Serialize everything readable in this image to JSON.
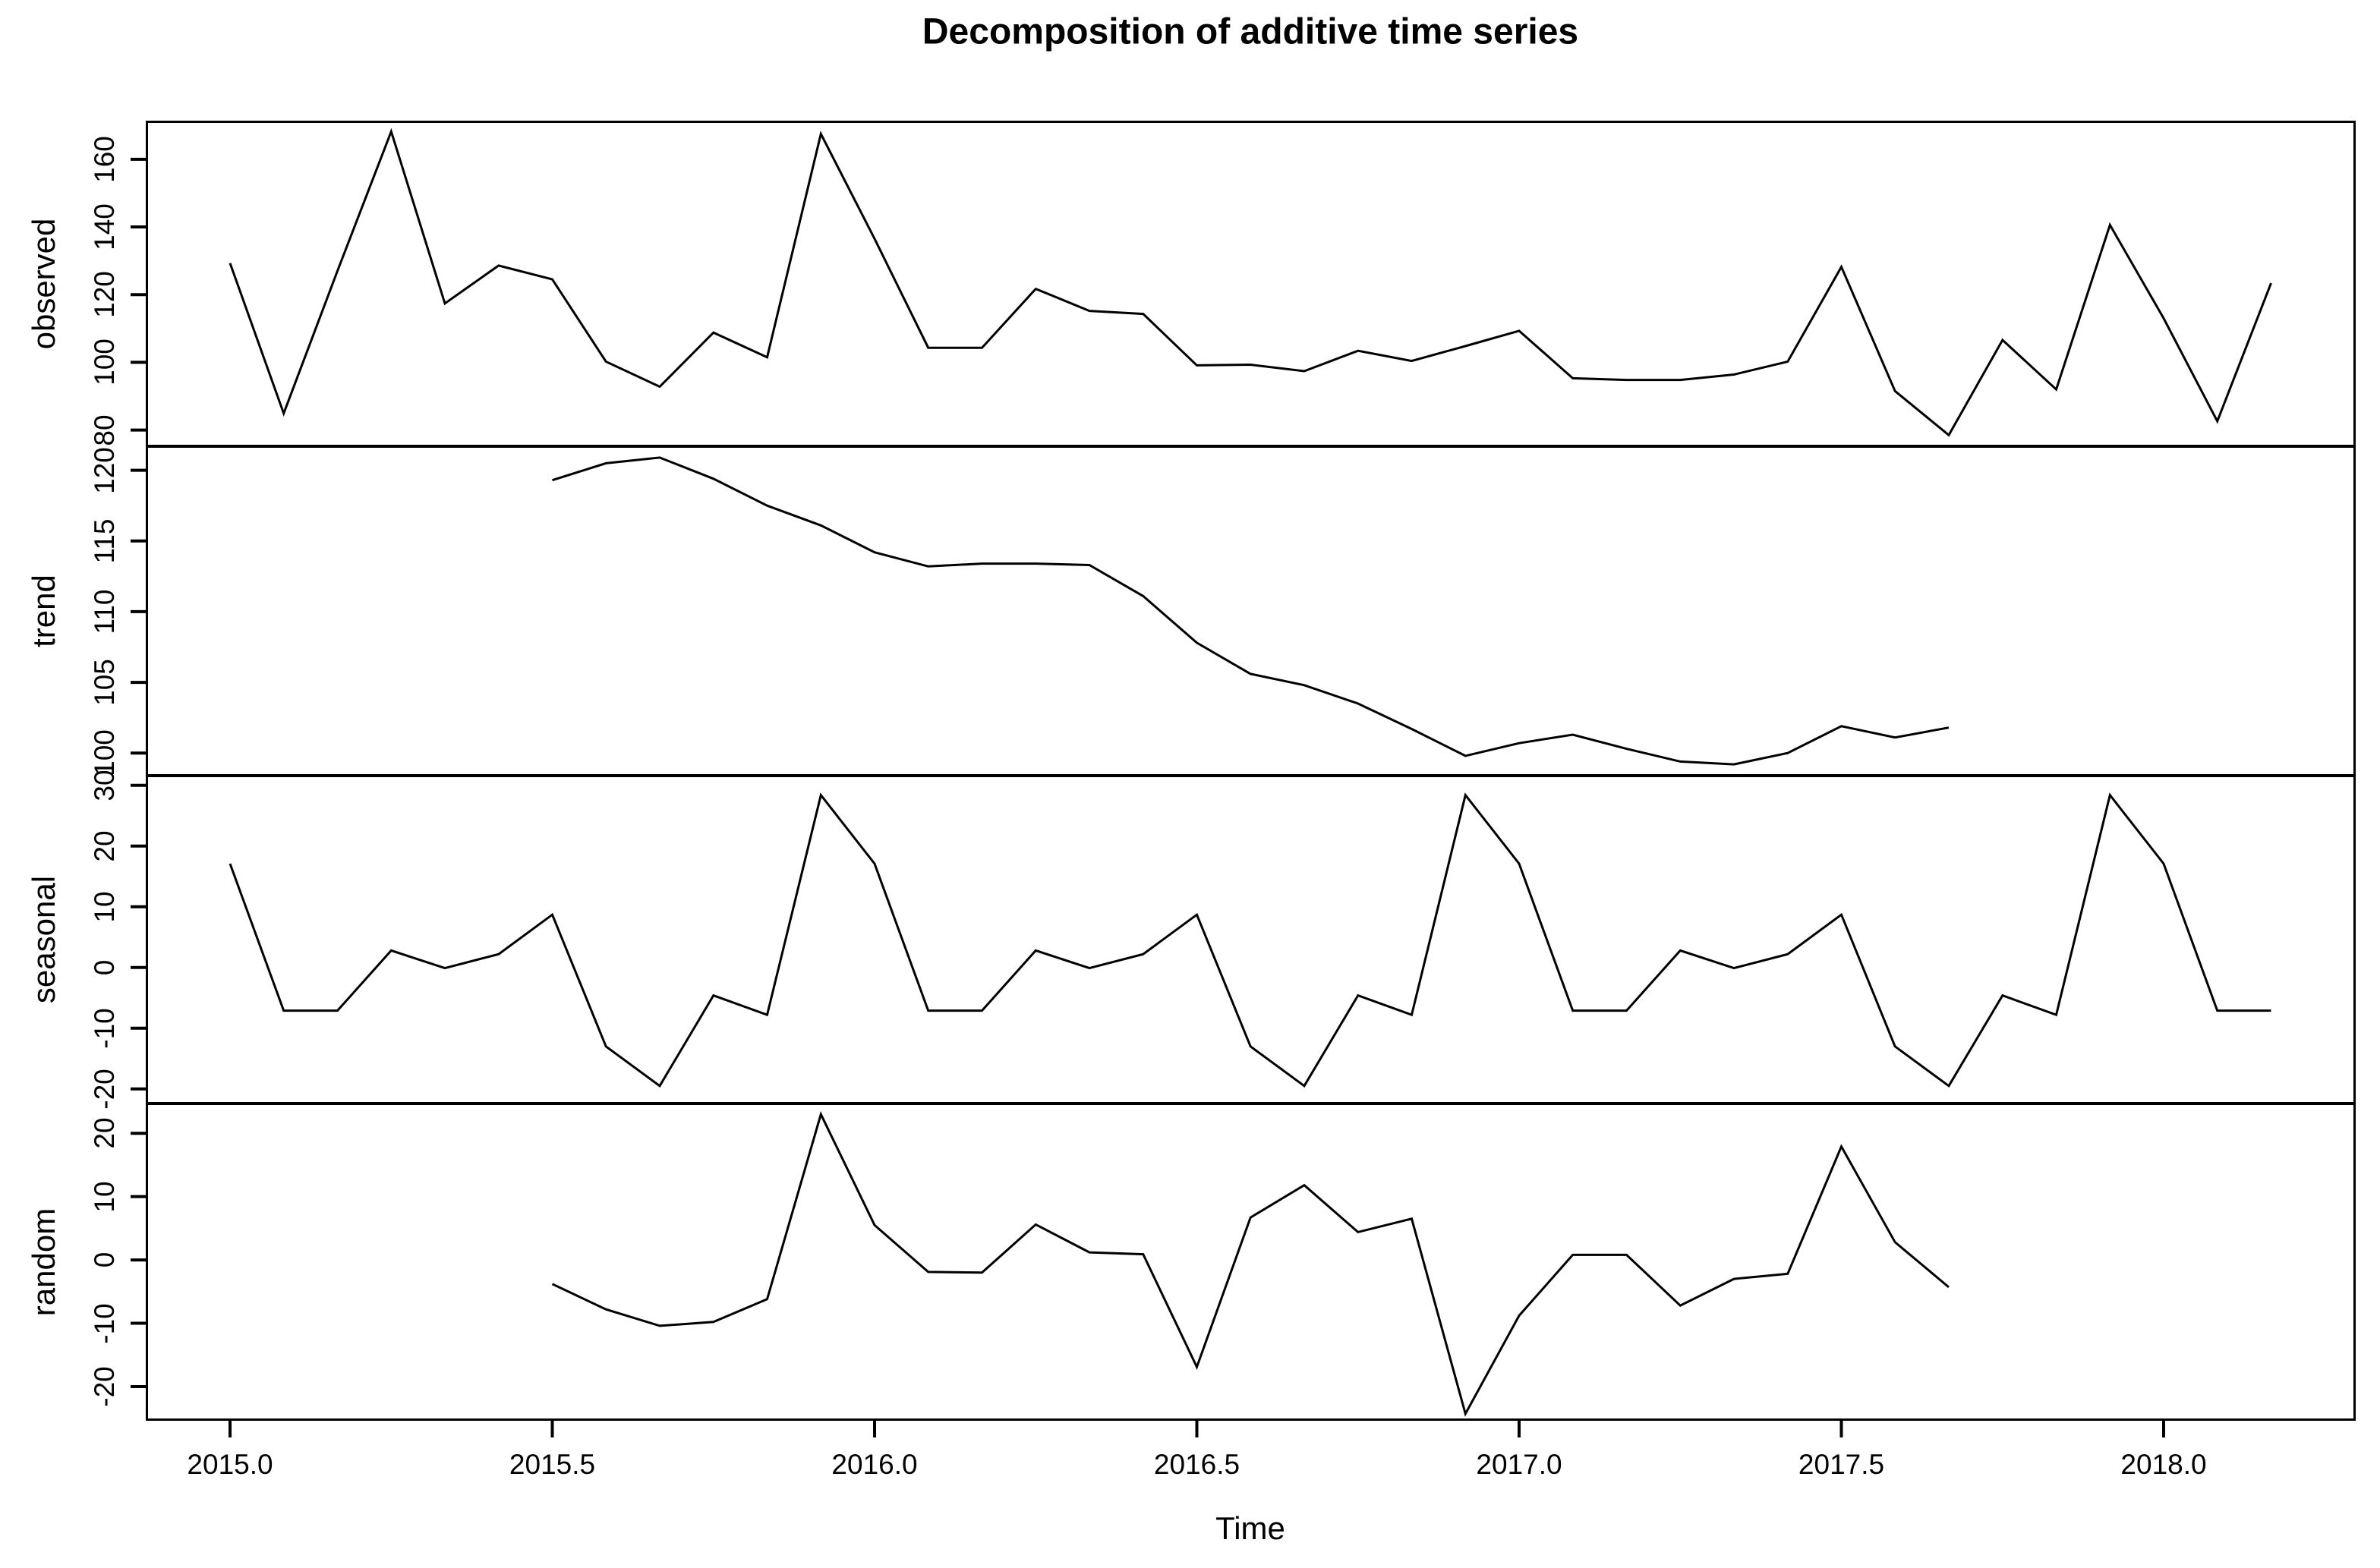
{
  "chart_data": {
    "type": "line",
    "title": "Decomposition of additive time series",
    "xlabel": "Time",
    "x_start": 2015.0,
    "frequency": 12,
    "n_points": 39,
    "xlim": [
      2014.87,
      2018.3
    ],
    "x_tick_labels": [
      "2015.0",
      "2015.5",
      "2016.0",
      "2016.5",
      "2017.0",
      "2017.5",
      "2018.0"
    ],
    "x_tick_values": [
      2015.0,
      2015.5,
      2016.0,
      2016.5,
      2017.0,
      2017.5,
      2018.0
    ],
    "grid": "off",
    "legend": "none",
    "line_color": "#000000",
    "seasonal_pattern_jan_to_dec": [
      17.1,
      -7.1,
      -7.1,
      2.8,
      -0.1,
      2.2,
      8.7,
      -13.0,
      -19.5,
      -4.6,
      -7.8,
      28.4
    ],
    "panels": [
      {
        "key": "observed",
        "ylabel": "observed",
        "ylim": [
          75.2,
          171.4
        ],
        "yticks": [
          80,
          100,
          120,
          140,
          160
        ],
        "values": [
          129.3,
          84.9,
          127.0,
          168.2,
          117.4,
          128.6,
          124.5,
          100.2,
          92.8,
          108.8,
          101.5,
          167.5,
          136.5,
          104.3,
          104.3,
          121.7,
          115.2,
          114.3,
          99.1,
          99.3,
          97.4,
          103.4,
          100.4,
          104.8,
          109.3,
          95.3,
          94.8,
          94.8,
          96.4,
          100.2,
          128.2,
          91.5,
          78.5,
          106.6,
          92.0,
          140.6,
          113.0,
          82.6,
          123.4
        ]
      },
      {
        "key": "trend",
        "ylabel": "trend",
        "ylim": [
          98.4,
          121.7
        ],
        "yticks": [
          100,
          105,
          110,
          115,
          120
        ],
        "values": [
          null,
          null,
          null,
          null,
          null,
          null,
          119.3,
          120.5,
          120.9,
          119.4,
          117.5,
          116.1,
          114.2,
          113.2,
          113.4,
          113.4,
          113.3,
          111.1,
          107.8,
          105.6,
          104.8,
          103.5,
          101.7,
          99.8,
          100.7,
          101.3,
          100.3,
          99.4,
          99.2,
          100.0,
          101.9,
          101.1,
          101.8,
          null,
          null,
          null,
          null,
          null,
          null
        ]
      },
      {
        "key": "seasonal",
        "ylabel": "seasonal",
        "ylim": [
          -22.4,
          31.6
        ],
        "yticks": [
          -20,
          -10,
          0,
          10,
          20,
          30
        ],
        "values": [
          17.1,
          -7.1,
          -7.1,
          2.8,
          -0.1,
          2.2,
          8.7,
          -13.0,
          -19.5,
          -4.6,
          -7.8,
          28.4,
          17.1,
          -7.1,
          -7.1,
          2.8,
          -0.1,
          2.2,
          8.7,
          -13.0,
          -19.5,
          -4.6,
          -7.8,
          28.4,
          17.1,
          -7.1,
          -7.1,
          2.8,
          -0.1,
          2.2,
          8.7,
          -13.0,
          -19.5,
          -4.6,
          -7.8,
          28.4,
          17.1,
          -7.1,
          -7.1
        ]
      },
      {
        "key": "random",
        "ylabel": "random",
        "ylim": [
          -25.4,
          24.7
        ],
        "yticks": [
          -20,
          -10,
          0,
          10,
          20
        ],
        "values": [
          null,
          null,
          null,
          null,
          null,
          null,
          -3.8,
          -7.8,
          -10.4,
          -9.8,
          -6.2,
          23.0,
          5.5,
          -1.9,
          -2.0,
          5.6,
          1.2,
          0.9,
          -16.9,
          6.7,
          11.8,
          4.4,
          6.5,
          -24.3,
          -8.8,
          0.8,
          0.8,
          -7.2,
          -3.0,
          -2.2,
          17.9,
          2.8,
          -4.3,
          null,
          null,
          null,
          null,
          null,
          null
        ]
      }
    ]
  }
}
